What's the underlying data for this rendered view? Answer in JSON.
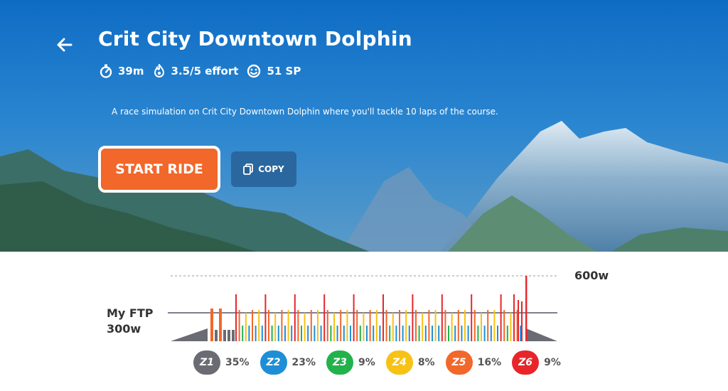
{
  "header": {
    "title": "Crit City Downtown Dolphin",
    "stats": [
      {
        "icon": "stopwatch-icon",
        "text": "39m"
      },
      {
        "icon": "flame-icon",
        "text": "3.5/5 effort"
      },
      {
        "icon": "smiley-icon",
        "text": "51 SP"
      }
    ],
    "description": "A race simulation on Crit City Downtown Dolphin where you'll tackle 10 laps of the course."
  },
  "actions": {
    "start_label": "START RIDE",
    "copy_label": "COPY"
  },
  "colors": {
    "accent": "#f2672a",
    "z1": "#6b6b73",
    "z2": "#1e8fd6",
    "z3": "#22b24c",
    "z4": "#f7c214",
    "z5": "#f2672a",
    "z6": "#e8262a"
  },
  "chart_data": {
    "type": "bar",
    "title": "",
    "reference_lines": [
      {
        "label": "My FTP",
        "value_label": "300w",
        "value": 300
      },
      {
        "label": "",
        "value_label": "600w",
        "value": 600
      }
    ],
    "ylim": [
      0,
      600
    ],
    "zones": [
      {
        "label": "Z1",
        "percent": "35%"
      },
      {
        "label": "Z2",
        "percent": "23%"
      },
      {
        "label": "Z3",
        "percent": "9%"
      },
      {
        "label": "Z4",
        "percent": "8%"
      },
      {
        "label": "Z5",
        "percent": "16%"
      },
      {
        "label": "Z6",
        "percent": "9%"
      }
    ]
  }
}
